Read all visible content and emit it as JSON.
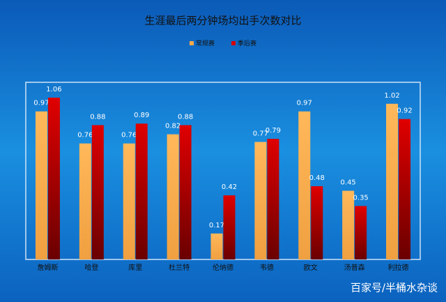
{
  "chart_data": {
    "type": "bar",
    "title": "生涯最后两分钟场均出手次数对比",
    "categories": [
      "詹姆斯",
      "哈登",
      "库里",
      "杜兰特",
      "伦纳德",
      "韦德",
      "欧文",
      "汤普森",
      "利拉德"
    ],
    "series": [
      {
        "name": "常规赛",
        "color": "#f5a94a",
        "values": [
          0.97,
          0.76,
          0.76,
          0.82,
          0.17,
          0.77,
          0.97,
          0.45,
          1.02
        ]
      },
      {
        "name": "季后赛",
        "color": "#d40000",
        "values": [
          1.06,
          0.88,
          0.89,
          0.88,
          0.42,
          0.79,
          0.48,
          0.35,
          0.92
        ]
      }
    ],
    "legend": "top",
    "watermark": "百家号/半桶水杂谈"
  }
}
